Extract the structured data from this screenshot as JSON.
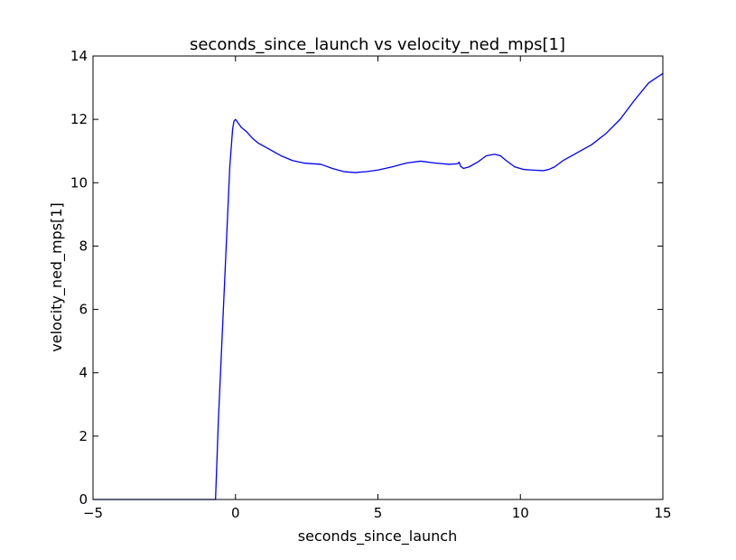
{
  "chart_data": {
    "type": "line",
    "title": "seconds_since_launch vs velocity_ned_mps[1]",
    "xlabel": "seconds_since_launch",
    "ylabel": "velocity_ned_mps[1]",
    "xlim": [
      -5,
      15
    ],
    "ylim": [
      0,
      14
    ],
    "x_ticks": [
      -5,
      0,
      5,
      10,
      15
    ],
    "x_tick_labels": [
      "−5",
      "0",
      "5",
      "10",
      "15"
    ],
    "y_ticks": [
      0,
      2,
      4,
      6,
      8,
      10,
      12,
      14
    ],
    "y_tick_labels": [
      "0",
      "2",
      "4",
      "6",
      "8",
      "10",
      "12",
      "14"
    ],
    "grid": false,
    "series": [
      {
        "color": "#0000ff",
        "x": [
          -5.0,
          -0.7,
          -0.6,
          -0.4,
          -0.2,
          -0.1,
          -0.05,
          0.0,
          0.2,
          0.4,
          0.6,
          0.8,
          1.0,
          1.3,
          1.6,
          2.0,
          2.4,
          3.0,
          3.4,
          3.8,
          4.2,
          4.6,
          5.0,
          5.5,
          6.0,
          6.5,
          7.0,
          7.5,
          7.8,
          7.85,
          7.9,
          8.0,
          8.2,
          8.5,
          8.8,
          9.1,
          9.3,
          9.5,
          9.8,
          10.1,
          10.4,
          10.8,
          11.0,
          11.2,
          11.5,
          12.0,
          12.5,
          13.0,
          13.5,
          14.0,
          14.5,
          15.0
        ],
        "y": [
          0.0,
          0.0,
          2.5,
          6.5,
          10.5,
          11.7,
          11.95,
          12.0,
          11.75,
          11.6,
          11.4,
          11.25,
          11.15,
          11.0,
          10.85,
          10.7,
          10.62,
          10.58,
          10.45,
          10.35,
          10.32,
          10.35,
          10.4,
          10.5,
          10.62,
          10.68,
          10.62,
          10.58,
          10.6,
          10.65,
          10.52,
          10.45,
          10.5,
          10.65,
          10.85,
          10.9,
          10.85,
          10.7,
          10.5,
          10.42,
          10.4,
          10.38,
          10.42,
          10.5,
          10.7,
          10.95,
          11.2,
          11.55,
          12.0,
          12.6,
          13.15,
          13.45
        ]
      }
    ]
  }
}
